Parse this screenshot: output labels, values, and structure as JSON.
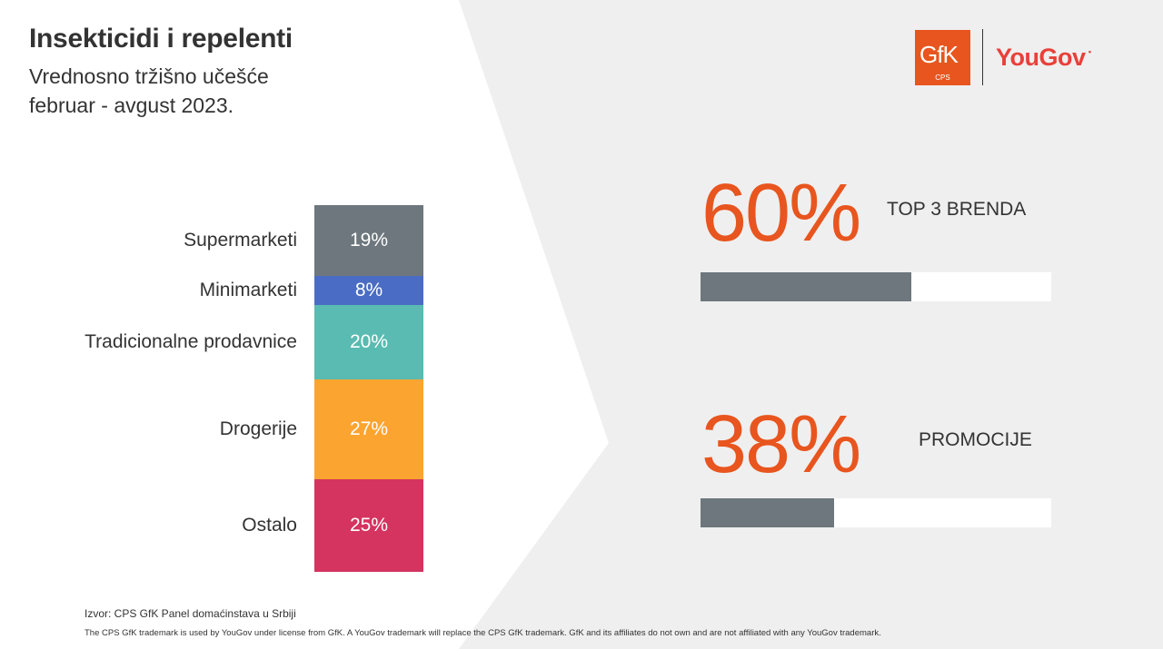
{
  "header": {
    "title": "Insekticidi i repelenti",
    "subtitle_line1": "Vrednosno tržišno učešće",
    "subtitle_line2": "februar - avgust 2023."
  },
  "logos": {
    "gfk_text": "GfK",
    "gfk_sub": "CPS",
    "yougov_text": "YouGov",
    "yougov_dot": "•"
  },
  "colors": {
    "accent_orange": "#e8551e",
    "kpi_bar_fill": "#6d777d",
    "background_grey": "#efefef"
  },
  "chart_data": [
    {
      "type": "bar",
      "stacked": true,
      "orientation": "vertical",
      "categories": [
        "Supermarketi",
        "Minimarketi",
        "Tradicionalne prodavnice",
        "Drogerije",
        "Ostalo"
      ],
      "values": [
        19,
        8,
        20,
        27,
        25
      ],
      "value_labels": [
        "19%",
        "8%",
        "20%",
        "27%",
        "25%"
      ],
      "colors": [
        "#6d777d",
        "#4a6cc4",
        "#59bbb1",
        "#fca430",
        "#d4345f"
      ],
      "unit": "%"
    },
    {
      "type": "bar",
      "orientation": "horizontal",
      "categories": [
        "TOP 3 BRENDA",
        "PROMOCIJE"
      ],
      "values": [
        60,
        38
      ],
      "value_labels": [
        "60%",
        "38%"
      ],
      "xlim": [
        0,
        100
      ]
    }
  ],
  "footer": {
    "source": "Izvor: CPS GfK Panel domaćinstava u Srbiji",
    "trademark": "The CPS GfK trademark is used by YouGov under license from GfK. A YouGov trademark will replace the CPS GfK trademark. GfK and its affiliates do not own and are not affiliated with any YouGov trademark."
  }
}
